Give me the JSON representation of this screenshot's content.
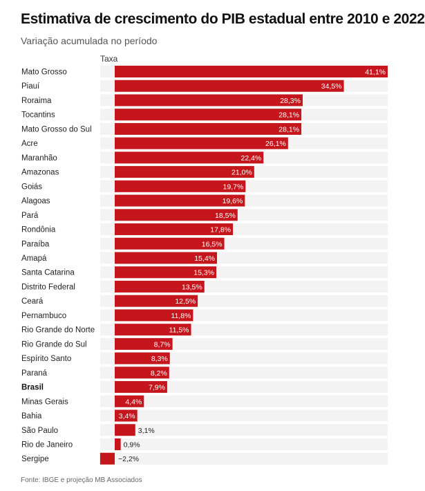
{
  "title": "Estimativa de crescimento do PIB estadual entre 2010 e 2022",
  "subtitle": "Variação acumulada no período",
  "column_header": "Taxa",
  "source": "Fonte: IBGE e projeção MB Associados",
  "colors": {
    "bar": "#c4161c",
    "track": "#f3f3f3",
    "value_inside": "#ffffff",
    "value_outside": "#222222"
  },
  "chart_data": {
    "type": "bar",
    "orientation": "horizontal",
    "title": "Estimativa de crescimento do PIB estadual entre 2010 e 2022",
    "subtitle": "Variação acumulada no período",
    "xlabel": "Taxa",
    "ylabel": "",
    "unit": "%",
    "xlim": [
      -2.2,
      41.1
    ],
    "grid": false,
    "legend": "none",
    "highlight": "Brasil",
    "categories": [
      "Mato Grosso",
      "Piauí",
      "Roraima",
      "Tocantins",
      "Mato Grosso do Sul",
      "Acre",
      "Maranhão",
      "Amazonas",
      "Goiás",
      "Alagoas",
      "Pará",
      "Rondônia",
      "Paraíba",
      "Amapá",
      "Santa Catarina",
      "Distrito Federal",
      "Ceará",
      "Pernambuco",
      "Rio Grande do Norte",
      "Rio Grande do Sul",
      "Espírito Santo",
      "Paraná",
      "Brasil",
      "Minas Gerais",
      "Bahia",
      "São Paulo",
      "Rio de Janeiro",
      "Sergipe"
    ],
    "values": [
      41.1,
      34.5,
      28.3,
      28.1,
      28.1,
      26.1,
      22.4,
      21.0,
      19.7,
      19.6,
      18.5,
      17.8,
      16.5,
      15.4,
      15.3,
      13.5,
      12.5,
      11.8,
      11.5,
      8.7,
      8.3,
      8.2,
      7.9,
      4.4,
      3.4,
      3.1,
      0.9,
      -2.2
    ],
    "value_labels": [
      "41,1%",
      "34,5%",
      "28,3%",
      "28,1%",
      "28,1%",
      "26,1%",
      "22,4%",
      "21,0%",
      "19,7%",
      "19,6%",
      "18,5%",
      "17,8%",
      "16,5%",
      "15,4%",
      "15,3%",
      "13,5%",
      "12,5%",
      "11,8%",
      "11,5%",
      "8,7%",
      "8,3%",
      "8,2%",
      "7,9%",
      "4,4%",
      "3,4%",
      "3,1%",
      "0,9%",
      "−2,2%"
    ]
  }
}
